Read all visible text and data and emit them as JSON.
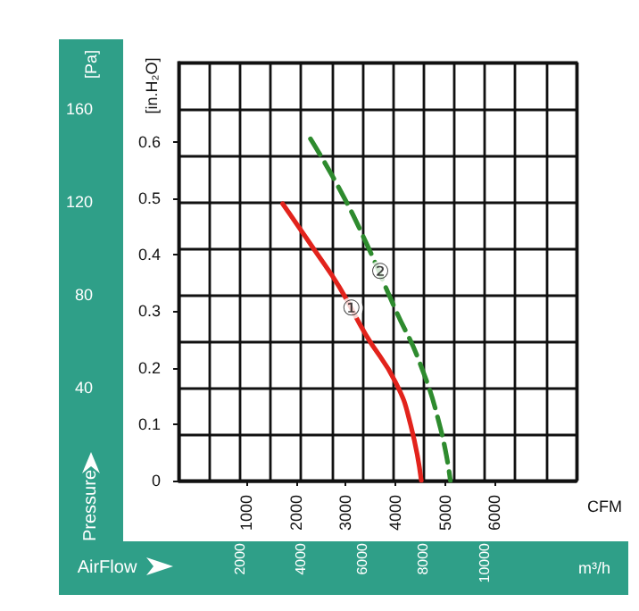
{
  "chart_data": {
    "type": "line",
    "xlabel": "AirFlow",
    "x2label": "CFM",
    "ylabel": "[in.H₂O]",
    "y2label": "Pressure",
    "annotations": [
      "[Pa]",
      "m³/h",
      {
        "text": "①",
        "x": 5650,
        "y": 0.305
      },
      {
        "text": "②",
        "x": 6590,
        "y": 0.37
      }
    ],
    "xlim": [
      0,
      13000
    ],
    "xticks": [
      {
        "value": 0,
        "label": null
      },
      {
        "value": 1000,
        "label": null
      },
      2000,
      {
        "value": 3000,
        "label": null
      },
      4000,
      {
        "value": 5000,
        "label": null
      },
      6000,
      {
        "value": 7000,
        "label": null
      },
      8000,
      {
        "value": 9000,
        "label": null
      },
      10000,
      {
        "value": 11000,
        "label": null
      },
      {
        "value": 12000,
        "label": null
      },
      {
        "value": 13000,
        "label": null
      }
    ],
    "x2lim": [
      -370,
      7650
    ],
    "x2ticks": [
      1000,
      2000,
      3000,
      4000,
      5000,
      6000
    ],
    "ylim": [
      0,
      0.74
    ],
    "yticks": [
      0,
      0.1,
      0.2,
      0.3,
      0.4,
      0.5,
      0.6
    ],
    "y2lim": [
      0,
      180
    ],
    "y2ticks": [
      {
        "value": 0,
        "label": null
      },
      {
        "value": 20,
        "label": null
      },
      40,
      {
        "value": 60,
        "label": null
      },
      80,
      {
        "value": 100,
        "label": null
      },
      120,
      {
        "value": 140,
        "label": null
      },
      160,
      {
        "value": 180,
        "label": null
      }
    ],
    "grid": true,
    "marker": "none",
    "series": [
      {
        "color": "#e2231c",
        "line_style": "solid",
        "x": [
          3400,
          4470,
          5250,
          6120,
          7100,
          7580,
          7930
        ],
        "values": [
          0.49,
          0.406,
          0.343,
          0.258,
          0.173,
          0.099,
          0
        ]
      },
      {
        "color": "#2e8b2e",
        "line_style": "dashed",
        "x": [
          4310,
          5250,
          6120,
          7100,
          7870,
          8550,
          8880
        ],
        "values": [
          0.605,
          0.517,
          0.422,
          0.301,
          0.21,
          0.094,
          0
        ]
      }
    ]
  }
}
